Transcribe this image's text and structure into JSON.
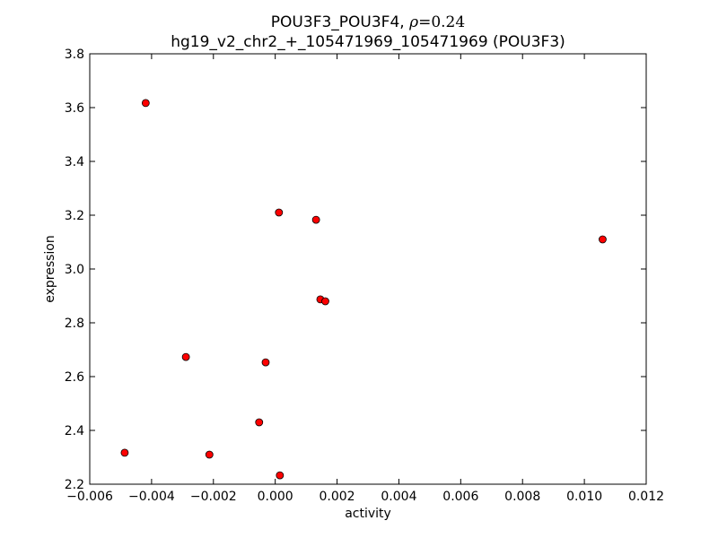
{
  "chart_data": {
    "type": "scatter",
    "title_main": "POU3F3_POU3F4, ",
    "title_rho_symbol": "ρ",
    "title_rho_eq": "=",
    "title_rho_value": "0.24",
    "subtitle": "hg19_v2_chr2_+_105471969_105471969 (POU3F3)",
    "xlabel": "activity",
    "ylabel": "expression",
    "xlim": [
      -0.006,
      0.012
    ],
    "ylim": [
      2.2,
      3.8
    ],
    "xticks": [
      -0.006,
      -0.004,
      -0.002,
      0.0,
      0.002,
      0.004,
      0.006,
      0.008,
      0.01,
      0.012
    ],
    "xtick_labels": [
      "−0.006",
      "−0.004",
      "−0.002",
      "0.000",
      "0.002",
      "0.004",
      "0.006",
      "0.008",
      "0.010",
      "0.012"
    ],
    "yticks": [
      2.2,
      2.4,
      2.6,
      2.8,
      3.0,
      3.2,
      3.4,
      3.6,
      3.8
    ],
    "ytick_labels": [
      "2.2",
      "2.4",
      "2.6",
      "2.8",
      "3.0",
      "3.2",
      "3.4",
      "3.6",
      "3.8"
    ],
    "grid": false,
    "marker_color": "#ff0000",
    "points": [
      {
        "x": -0.00419,
        "y": 3.617
      },
      {
        "x": -0.00289,
        "y": 2.673
      },
      {
        "x": -0.00487,
        "y": 2.317
      },
      {
        "x": -0.00213,
        "y": 2.31
      },
      {
        "x": -0.00052,
        "y": 2.43
      },
      {
        "x": -0.00031,
        "y": 2.653
      },
      {
        "x": 0.00012,
        "y": 3.21
      },
      {
        "x": 0.00015,
        "y": 2.233
      },
      {
        "x": 0.00132,
        "y": 3.183
      },
      {
        "x": 0.00146,
        "y": 2.887
      },
      {
        "x": 0.00162,
        "y": 2.88
      },
      {
        "x": 0.01059,
        "y": 3.11
      }
    ]
  }
}
